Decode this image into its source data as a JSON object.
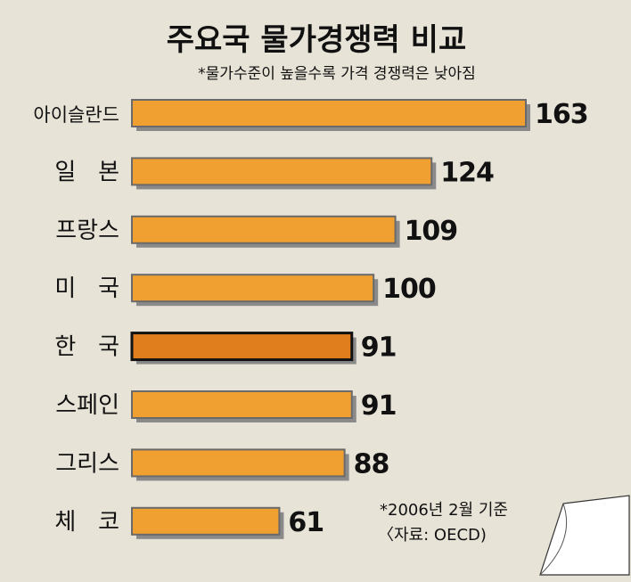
{
  "chart_data": {
    "type": "bar",
    "orientation": "horizontal",
    "title": "주요국 물가경쟁력 비교",
    "subtitle": "*물가수준이 높을수록 가격 경쟁력은 낮아짐",
    "categories": [
      "아이슬란드",
      "일 본",
      "프랑스",
      "미 국",
      "한 국",
      "스페인",
      "그리스",
      "체 코"
    ],
    "values": [
      163,
      124,
      109,
      100,
      91,
      91,
      88,
      61
    ],
    "highlight": "한 국",
    "xlim": [
      0,
      163
    ],
    "grid": false,
    "legend": "none",
    "notes": [
      "*2006년 2월 기준",
      "〈자료: OECD)"
    ],
    "colors": {
      "background": "#e8e3d7",
      "bar": "#f0a030",
      "bar_highlight": "#e07e1e",
      "bar_border": "#6a6a6a",
      "bar_highlight_border": "#111111",
      "shadow": "#8a8a8a"
    }
  }
}
